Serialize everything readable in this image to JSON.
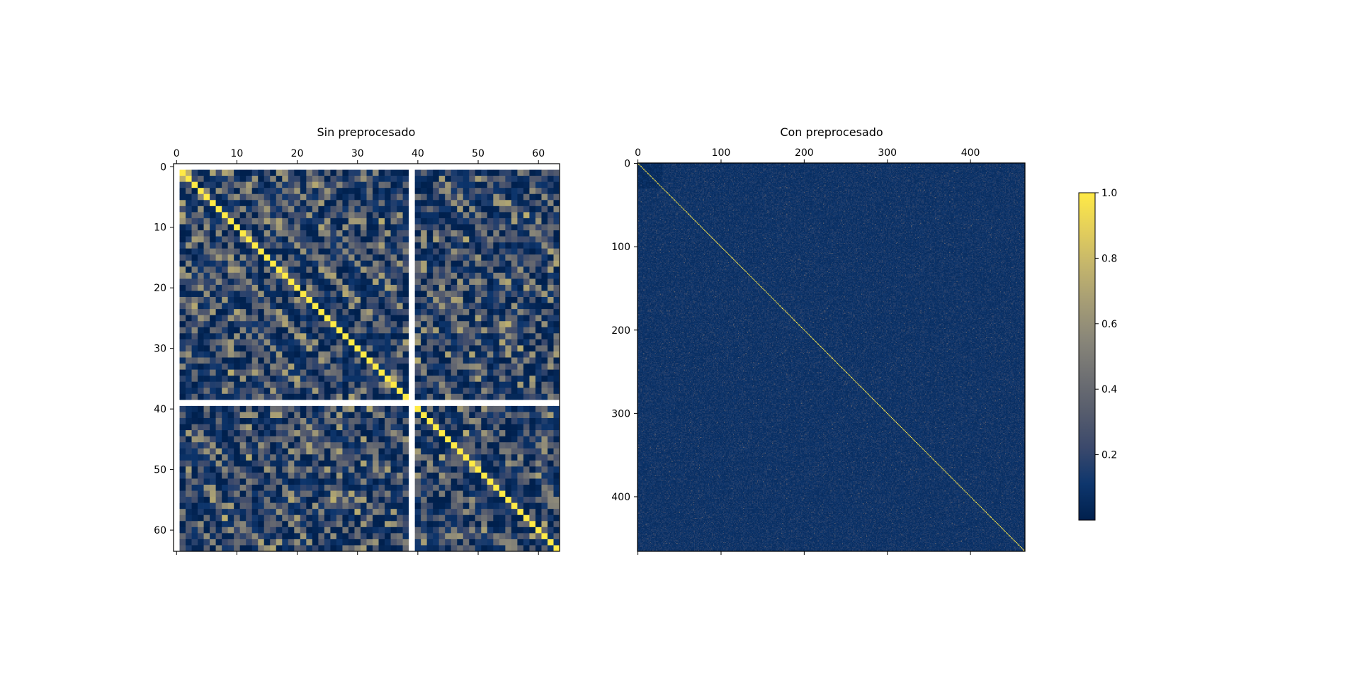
{
  "chart_data": [
    {
      "type": "heatmap",
      "title": "Sin preprocesado",
      "xlabel": "",
      "ylabel": "",
      "size": 64,
      "xlim": [
        -0.5,
        63.5
      ],
      "ylim": [
        63.5,
        -0.5
      ],
      "x_ticks": [
        0,
        10,
        20,
        30,
        40,
        50,
        60
      ],
      "y_ticks": [
        0,
        10,
        20,
        30,
        40,
        50,
        60
      ],
      "x_tick_labels": [
        "0",
        "10",
        "20",
        "30",
        "40",
        "50",
        "60"
      ],
      "y_tick_labels": [
        "0",
        "10",
        "20",
        "30",
        "40",
        "50",
        "60"
      ],
      "x_tick_position": "top",
      "missing_rows": [
        0,
        39
      ],
      "missing_cols": [
        0,
        39
      ],
      "diagonal_value": 1.0,
      "off_diagonal_range": [
        0.0,
        0.8
      ],
      "colormap": "cividis"
    },
    {
      "type": "heatmap",
      "title": "Con preprocesado",
      "xlabel": "",
      "ylabel": "",
      "size": 466,
      "xlim": [
        -0.5,
        465.5
      ],
      "ylim": [
        465.5,
        -0.5
      ],
      "x_ticks": [
        0,
        100,
        200,
        300,
        400
      ],
      "y_ticks": [
        0,
        100,
        200,
        300,
        400
      ],
      "x_tick_labels": [
        "0",
        "100",
        "200",
        "300",
        "400"
      ],
      "y_tick_labels": [
        "0",
        "100",
        "200",
        "300",
        "400"
      ],
      "x_tick_position": "top",
      "diagonal_value": 1.0,
      "off_diagonal_range": [
        0.0,
        0.35
      ],
      "colormap": "cividis"
    }
  ],
  "colorbar": {
    "range": [
      0.0,
      1.0
    ],
    "ticks": [
      0.2,
      0.4,
      0.6,
      0.8,
      1.0
    ],
    "tick_labels": [
      "0.2",
      "0.4",
      "0.6",
      "0.8",
      "1.0"
    ],
    "colormap": "cividis",
    "colors": [
      "#00204d",
      "#0e366d",
      "#3b496c",
      "#575d6d",
      "#707173",
      "#8a8779",
      "#a69d75",
      "#c4b56c",
      "#e4cf5b",
      "#ffea46"
    ]
  },
  "background_color": "#ffffff",
  "missing_color": "#ffffff"
}
